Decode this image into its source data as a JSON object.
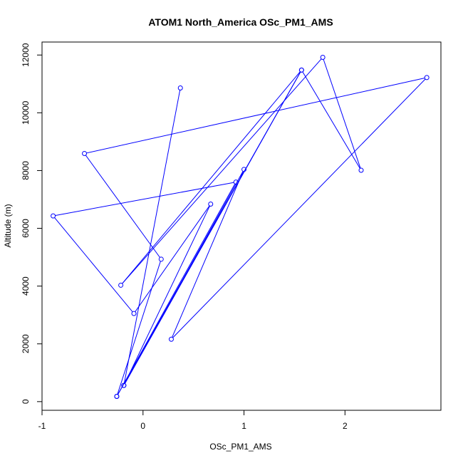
{
  "chart_data": {
    "type": "line",
    "title": "ATOM1 North_America OSc_PM1_AMS",
    "xlabel": "OSc_PM1_AMS",
    "ylabel": "Altitude (m)",
    "xlim": [
      -1.0,
      2.95
    ],
    "ylim": [
      -300,
      12450
    ],
    "x_ticks": [
      -1,
      0,
      1,
      2
    ],
    "y_ticks": [
      0,
      2000,
      4000,
      6000,
      8000,
      10000,
      12000
    ],
    "x_tick_labels": [
      "-1",
      "0",
      "1",
      "2"
    ],
    "y_tick_labels": [
      "0",
      "2000",
      "4000",
      "6000",
      "8000",
      "10000",
      "12000"
    ],
    "grid": false,
    "legend": "none",
    "series": [
      {
        "color": "#0000ff",
        "marker": "open-circle",
        "points": [
          {
            "x": -0.26,
            "y": 180
          },
          {
            "x": 0.18,
            "y": 4930
          },
          {
            "x": -0.58,
            "y": 8590
          },
          {
            "x": 2.81,
            "y": 11220
          },
          {
            "x": 0.28,
            "y": 2160
          },
          {
            "x": 1.0,
            "y": 8040
          },
          {
            "x": -0.19,
            "y": 560
          },
          {
            "x": 0.67,
            "y": 6840
          },
          {
            "x": -0.09,
            "y": 3050
          },
          {
            "x": -0.89,
            "y": 6430
          },
          {
            "x": 0.92,
            "y": 7600
          },
          {
            "x": -0.26,
            "y": 180
          },
          {
            "x": 1.57,
            "y": 11480
          },
          {
            "x": -0.22,
            "y": 4030
          },
          {
            "x": 1.78,
            "y": 11920
          },
          {
            "x": 2.16,
            "y": 8010
          },
          {
            "x": 1.57,
            "y": 11480
          },
          {
            "x": -0.19,
            "y": 560
          },
          {
            "x": 0.37,
            "y": 10860
          }
        ]
      }
    ]
  }
}
